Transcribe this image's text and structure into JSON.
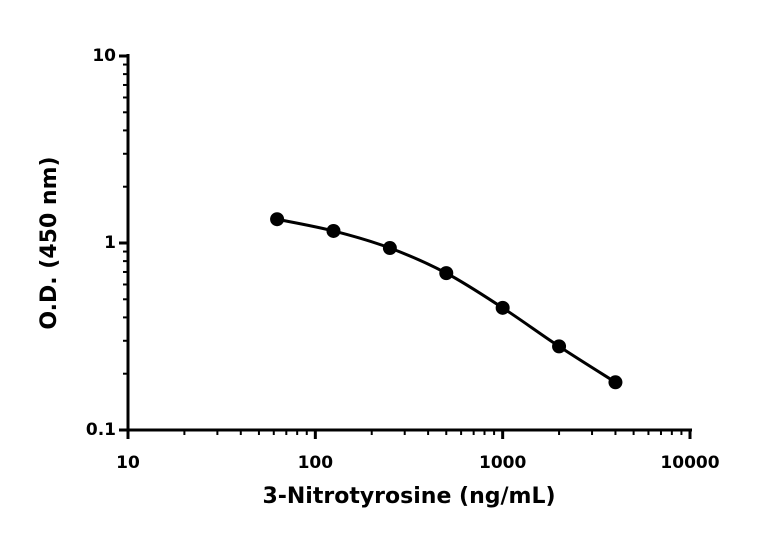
{
  "chart_data": {
    "type": "scatter",
    "x_label": "3-Nitrotyrosine (ng/mL)",
    "y_label": "O.D. (450 nm)",
    "x_log": true,
    "y_log": true,
    "grid": false,
    "connect_curve": true,
    "xlim": [
      10,
      10000
    ],
    "xticks": [
      10,
      100,
      1000,
      10000
    ],
    "xminorticks": [
      20,
      30,
      40,
      50,
      60,
      70,
      80,
      90,
      200,
      300,
      400,
      500,
      600,
      700,
      800,
      900,
      2000,
      3000,
      4000,
      5000,
      6000,
      7000,
      8000,
      9000
    ],
    "ylim": [
      0.1,
      10
    ],
    "yticks": [
      0.1,
      1,
      10
    ],
    "yminorticks": [
      0.2,
      0.3,
      0.4,
      0.5,
      0.6,
      0.7,
      0.8,
      0.9,
      2,
      3,
      4,
      5,
      6,
      7,
      8,
      9
    ],
    "series": [
      {
        "color": "#000000",
        "x": [
          62.5,
          125,
          250,
          500,
          1000,
          2000,
          4000
        ],
        "values": [
          1.34,
          1.16,
          0.94,
          0.69,
          0.45,
          0.28,
          0.18
        ]
      }
    ]
  }
}
